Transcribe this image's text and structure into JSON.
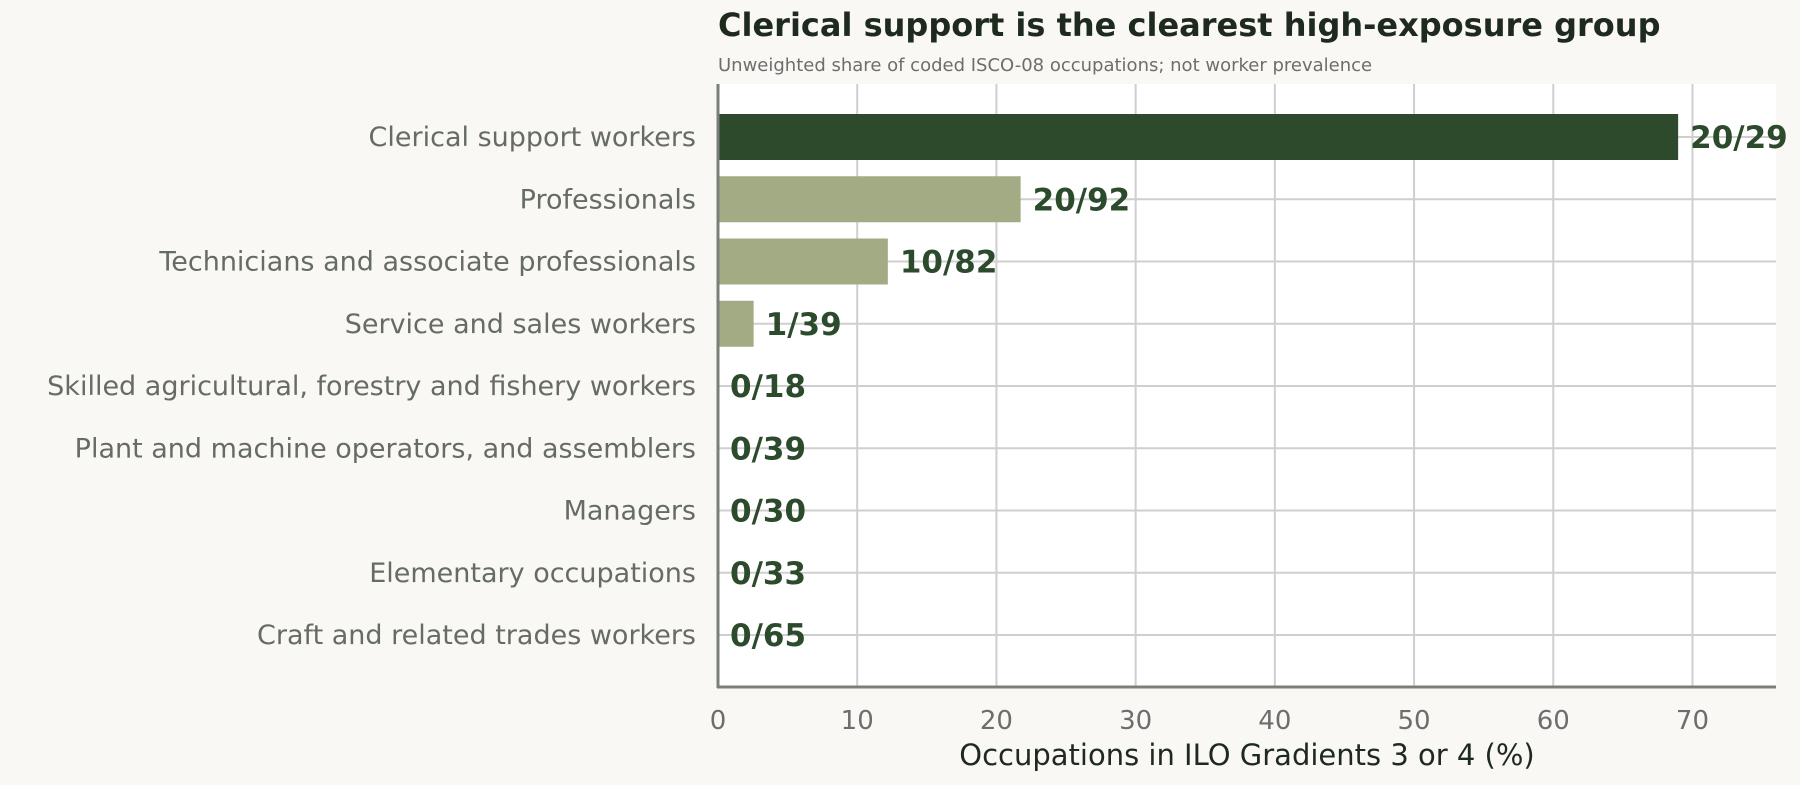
{
  "chart_data": {
    "type": "bar",
    "orientation": "horizontal",
    "title": "Clerical support is the clearest high-exposure group",
    "subtitle": "Unweighted share of coded ISCO-08 occupations; not worker prevalence",
    "xlabel": "Occupations in ILO Gradients 3 or 4 (%)",
    "ylabel": "",
    "xlim": [
      0,
      76
    ],
    "xticks": [
      0,
      10,
      20,
      30,
      40,
      50,
      60,
      70
    ],
    "grid": true,
    "categories": [
      "Clerical support workers",
      "Professionals",
      "Technicians and associate professionals",
      "Service and sales workers",
      "Skilled agricultural, forestry and fishery workers",
      "Plant and machine operators, and assemblers",
      "Managers",
      "Elementary occupations",
      "Craft and related trades workers"
    ],
    "values": [
      68.97,
      21.74,
      12.2,
      2.56,
      0,
      0,
      0,
      0,
      0
    ],
    "data_labels": [
      "20/29",
      "20/92",
      "10/82",
      "1/39",
      "0/18",
      "0/39",
      "0/30",
      "0/33",
      "0/65"
    ],
    "highlight_index": 0,
    "colors": {
      "highlight": "#2d4a2d",
      "bar": "#a3ab84",
      "label": "#2c4a2c",
      "grid": "#cfcfcf",
      "axis": "#7a7f78",
      "plot_bg": "#ffffff",
      "page_bg": "#f9f8f4"
    }
  }
}
